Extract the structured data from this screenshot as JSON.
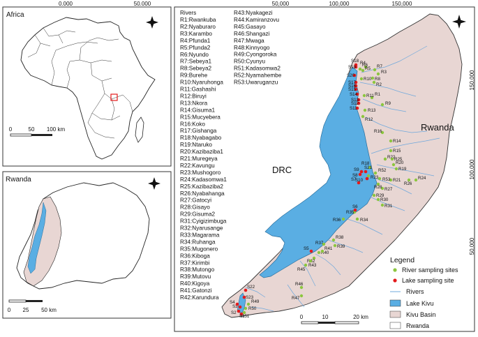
{
  "africa_panel": {
    "title": "Africa",
    "ticks_top": [
      "0.000",
      "50.000"
    ],
    "scale_labels": [
      "0",
      "50",
      "100 km"
    ]
  },
  "rwanda_panel": {
    "title": "Rwanda",
    "scale_labels": [
      "0",
      "25",
      "50 km"
    ]
  },
  "main_map": {
    "ticks_top": [
      "50,000",
      "100,000",
      "150,000"
    ],
    "ticks_right": [
      "150,000",
      "100,000",
      "50,000"
    ],
    "country_labels": {
      "drc": "DRC",
      "rwanda": "Rwanda"
    },
    "scale_labels": [
      "0",
      "10",
      "20 km"
    ],
    "rivers_header": "Rivers",
    "rivers_col1": [
      "R1:Rwankuba",
      "R2:Nyaburaro",
      "R3:Karambo",
      "R4:Pfunda1",
      "R5:Pfunda2",
      "R6:Nyundo",
      "R7:Sebeya1",
      "R8:Sebeya2",
      "R9:Burehe",
      "R10:Nyaruhonga",
      "R11:Gashashi",
      "R12:Biruyi",
      "R13:Nkora",
      "R14:Gisuma1",
      "R15:Mucyebera",
      "R16:Koko",
      "R17:Gishanga",
      "R18:Nyabagabo",
      "R19:Ntaruko",
      "R20:Kazibaziba1",
      "R21:Muregeya",
      "R22:Kavungu",
      "R23:Mushogoro",
      "R24:Kadasomwa1",
      "R25:Kazibaziba2",
      "R26:Nyabahanga",
      "R27:Gatocyi",
      "R28:Gisayo",
      "R29:Gisuma2",
      "R31:Cyigizimbuga",
      "R32:Nyarusange",
      "R33:Magarama",
      "R34:Ruhanga",
      "R35:Mugonero",
      "R36:Kiboga",
      "R37:Kirimbi",
      "R38:Mutongo",
      "R39:Mutovu",
      "R40:Kigoya",
      "R41:Gatonzi",
      "R42:Karundura"
    ],
    "rivers_col2": [
      "R43:Nyakagezi",
      "R44:Kamiranzovu",
      "R45:Gasayo",
      "R46:Shangazi",
      "R47:Mwaga",
      "R48:Kinnyogo",
      "R49:Cyongoroka",
      "R50:Cyunyu",
      "R51:Kadasomwa2",
      "R52:Nyamahembe",
      "R53:Uwaruganzu"
    ],
    "legend": {
      "title": "Legend",
      "items": [
        {
          "label": "River sampling sites",
          "color": "#8cc63f"
        },
        {
          "label": "Lake sampling site",
          "color": "#e41a1c"
        },
        {
          "label": "Rivers",
          "color": "#6fa8dc"
        },
        {
          "label": "Lake Kivu",
          "color": "#5aaee3"
        },
        {
          "label": "Kivu Basin",
          "color": "#e8d6d3"
        },
        {
          "label": "Rwanda",
          "color": "#ffffff"
        }
      ]
    },
    "river_site_labels": [
      "R1",
      "R2",
      "R3",
      "R4",
      "R5",
      "R6",
      "R7",
      "R8",
      "R9",
      "R10",
      "R11",
      "R12",
      "R13",
      "R14",
      "R15",
      "R16",
      "R18",
      "R19",
      "R20",
      "R21",
      "R22",
      "R23",
      "R24",
      "R25",
      "R26",
      "R27",
      "R28",
      "R29",
      "R30",
      "R31",
      "R34",
      "R35",
      "R36",
      "R37",
      "R38",
      "R39",
      "R40",
      "R41",
      "R42",
      "R43",
      "R45",
      "R46",
      "R47",
      "R49",
      "R50",
      "R51",
      "R52",
      "R53"
    ],
    "lake_site_labels": [
      "S1",
      "S2",
      "S3",
      "S4",
      "S5",
      "S6",
      "S7",
      "S8",
      "S9",
      "S10",
      "S11",
      "S12",
      "S13",
      "S14",
      "S15",
      "S16",
      "S17",
      "S18",
      "S19",
      "S20",
      "S21",
      "S22",
      "S23"
    ]
  }
}
